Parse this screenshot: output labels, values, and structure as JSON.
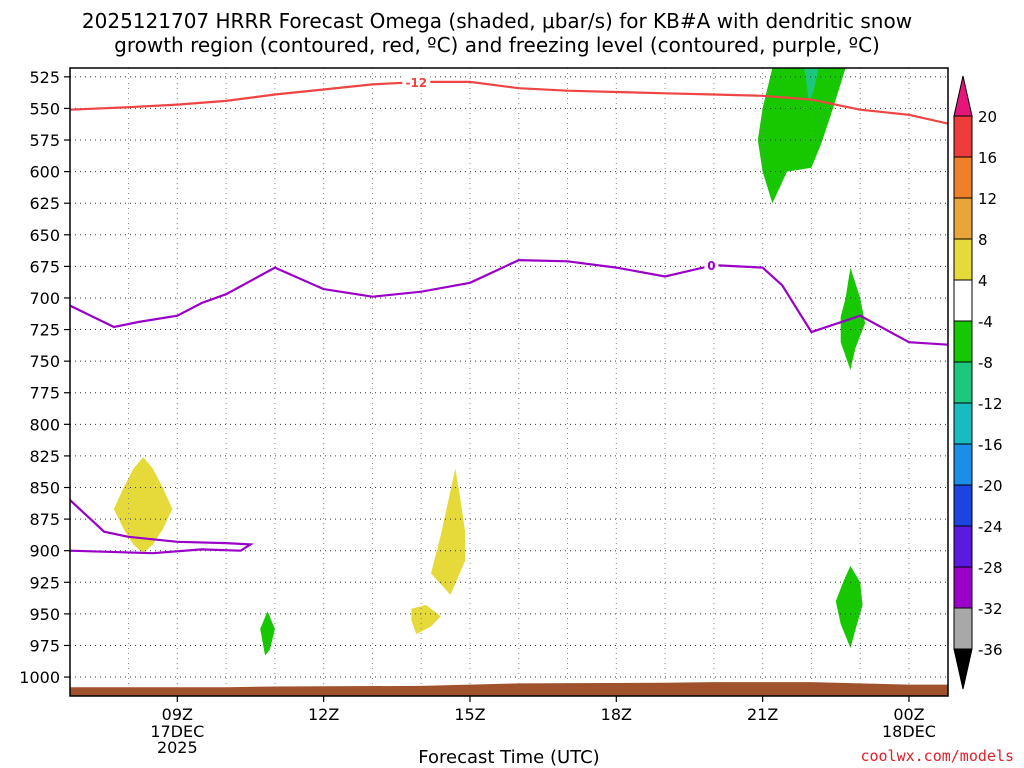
{
  "chart_data": {
    "type": "heatmap",
    "title_line1": "2025121707 HRRR Forecast Omega (shaded, μbar/s) for KB#A with dendritic snow",
    "title_line2": "growth region (contoured, red, ºC) and freezing level (contoured, purple, ºC)",
    "xlabel": "Forecast Time (UTC)",
    "ylabel": "",
    "credit": "coolwx.com/models",
    "x_axis": {
      "unit": "hours since 07Z 17DEC",
      "range": [
        -0.2,
        17.8
      ],
      "ticks": [
        {
          "x": 2,
          "label": "09Z",
          "sub1": "17DEC",
          "sub2": "2025"
        },
        {
          "x": 5,
          "label": "12Z",
          "sub1": "",
          "sub2": ""
        },
        {
          "x": 8,
          "label": "15Z",
          "sub1": "",
          "sub2": ""
        },
        {
          "x": 11,
          "label": "18Z",
          "sub1": "",
          "sub2": ""
        },
        {
          "x": 14,
          "label": "21Z",
          "sub1": "",
          "sub2": ""
        },
        {
          "x": 17,
          "label": "00Z",
          "sub1": "18DEC",
          "sub2": ""
        }
      ],
      "minor_gridlines": [
        1,
        3,
        4,
        6,
        7,
        9,
        10,
        12,
        13,
        15,
        16
      ]
    },
    "y_axis": {
      "unit": "hPa",
      "range": [
        1015,
        518
      ],
      "ticks": [
        525,
        550,
        575,
        600,
        625,
        650,
        675,
        700,
        725,
        750,
        775,
        800,
        825,
        850,
        875,
        900,
        925,
        950,
        975,
        1000
      ]
    },
    "grid": true,
    "colorbar": {
      "labels": [
        "20",
        "16",
        "12",
        "8",
        "4",
        "-4",
        "-8",
        "-12",
        "-16",
        "-20",
        "-24",
        "-28",
        "-32",
        "-36"
      ],
      "colors": [
        "#ee3c3c",
        "#f07f2a",
        "#e8a53a",
        "#e6da3a",
        "#ffffff",
        "#17c800",
        "#1bc87e",
        "#17bcc0",
        "#1b8ee8",
        "#1b44e0",
        "#5a1adf",
        "#9a00c8",
        "#a8a8a8"
      ],
      "top_arrow": "#e6157a",
      "bottom_arrow": "#000000"
    },
    "dgz_contour": {
      "label": "-12",
      "color": "#ee4444",
      "points": [
        [
          -0.2,
          551
        ],
        [
          1,
          549
        ],
        [
          2,
          547
        ],
        [
          3,
          544
        ],
        [
          4,
          539
        ],
        [
          5,
          535
        ],
        [
          6,
          531
        ],
        [
          7,
          529
        ],
        [
          8,
          529
        ],
        [
          9,
          534
        ],
        [
          10,
          536
        ],
        [
          11,
          537
        ],
        [
          12,
          538
        ],
        [
          13,
          539
        ],
        [
          14,
          540
        ],
        [
          15,
          543
        ],
        [
          16,
          551
        ],
        [
          17,
          555
        ],
        [
          17.8,
          562
        ]
      ],
      "label_at": [
        6.9,
        529
      ]
    },
    "freezing_contour": {
      "label": "0",
      "color": "#9a00c8",
      "points": [
        [
          -0.2,
          706
        ],
        [
          0.7,
          723
        ],
        [
          1.2,
          719
        ],
        [
          2,
          714
        ],
        [
          2.5,
          704
        ],
        [
          3,
          697
        ],
        [
          4,
          676
        ],
        [
          5,
          693
        ],
        [
          6,
          699
        ],
        [
          7,
          695
        ],
        [
          8,
          688
        ],
        [
          9,
          670
        ],
        [
          10,
          671
        ],
        [
          11,
          676
        ],
        [
          12,
          683
        ],
        [
          13,
          674
        ],
        [
          14,
          676
        ],
        [
          14.4,
          690
        ],
        [
          15,
          727
        ],
        [
          16,
          714
        ],
        [
          17,
          735
        ],
        [
          17.8,
          737
        ]
      ],
      "label_at": [
        12.95,
        674
      ],
      "low_points": [
        [
          -0.2,
          860
        ],
        [
          0.5,
          885
        ],
        [
          1,
          889
        ],
        [
          2,
          893
        ],
        [
          3,
          894
        ],
        [
          3.5,
          895
        ],
        [
          3.3,
          900
        ],
        [
          2.5,
          899
        ],
        [
          1.5,
          902
        ],
        [
          -0.2,
          900
        ]
      ]
    },
    "omega_regions": [
      {
        "value": 6,
        "color": "#e6da3a",
        "points": [
          [
            0.9,
            850
          ],
          [
            1.1,
            835
          ],
          [
            1.3,
            826
          ],
          [
            1.5,
            835
          ],
          [
            1.7,
            850
          ],
          [
            1.9,
            867
          ],
          [
            1.7,
            883
          ],
          [
            1.5,
            895
          ],
          [
            1.3,
            902
          ],
          [
            1.1,
            895
          ],
          [
            0.9,
            883
          ],
          [
            0.7,
            867
          ]
        ]
      },
      {
        "value": 6,
        "color": "#e6da3a",
        "points": [
          [
            7.7,
            835
          ],
          [
            7.8,
            858
          ],
          [
            7.9,
            885
          ],
          [
            7.9,
            908
          ],
          [
            7.6,
            935
          ],
          [
            7.2,
            918
          ],
          [
            7.4,
            888
          ]
        ]
      },
      {
        "value": 6,
        "color": "#e6da3a",
        "points": [
          [
            6.8,
            946
          ],
          [
            7.1,
            943
          ],
          [
            7.4,
            952
          ],
          [
            7.2,
            960
          ],
          [
            6.9,
            966
          ],
          [
            6.8,
            955
          ]
        ]
      },
      {
        "value": -6,
        "color": "#17c800",
        "points": [
          [
            3.7,
            962
          ],
          [
            3.85,
            948
          ],
          [
            4.0,
            962
          ],
          [
            3.9,
            978
          ],
          [
            3.8,
            983
          ]
        ]
      },
      {
        "value": -6,
        "color": "#17c800",
        "points": [
          [
            14.2,
            518
          ],
          [
            15.7,
            518
          ],
          [
            15.4,
            555
          ],
          [
            15.2,
            578
          ],
          [
            15.0,
            597
          ],
          [
            14.5,
            600
          ],
          [
            14.2,
            625
          ],
          [
            14.0,
            600
          ],
          [
            13.9,
            575
          ],
          [
            14.0,
            550
          ]
        ]
      },
      {
        "value": -6,
        "color": "#17c800",
        "points": [
          [
            15.7,
            700
          ],
          [
            15.8,
            676
          ],
          [
            16.0,
            700
          ],
          [
            16.1,
            720
          ],
          [
            15.9,
            740
          ],
          [
            15.8,
            757
          ],
          [
            15.6,
            735
          ],
          [
            15.6,
            715
          ]
        ]
      },
      {
        "value": -6,
        "color": "#17c800",
        "points": [
          [
            15.8,
            912
          ],
          [
            16.0,
            925
          ],
          [
            16.05,
            943
          ],
          [
            15.9,
            963
          ],
          [
            15.8,
            977
          ],
          [
            15.6,
            958
          ],
          [
            15.5,
            940
          ],
          [
            15.65,
            925
          ]
        ]
      },
      {
        "value": -10,
        "color": "#1bc87e",
        "points": [
          [
            14.85,
            518
          ],
          [
            15.15,
            518
          ],
          [
            15.05,
            535
          ],
          [
            14.95,
            545
          ],
          [
            14.9,
            530
          ]
        ]
      }
    ],
    "terrain": {
      "color": "#a0522d",
      "points": [
        [
          -0.2,
          1008
        ],
        [
          1,
          1008
        ],
        [
          3,
          1008
        ],
        [
          4,
          1007.5
        ],
        [
          7,
          1007
        ],
        [
          8,
          1006
        ],
        [
          9,
          1005
        ],
        [
          12,
          1004.5
        ],
        [
          13,
          1004
        ],
        [
          14,
          1004
        ],
        [
          15,
          1004
        ],
        [
          16,
          1005
        ],
        [
          17,
          1006
        ],
        [
          17.8,
          1006
        ]
      ]
    }
  }
}
